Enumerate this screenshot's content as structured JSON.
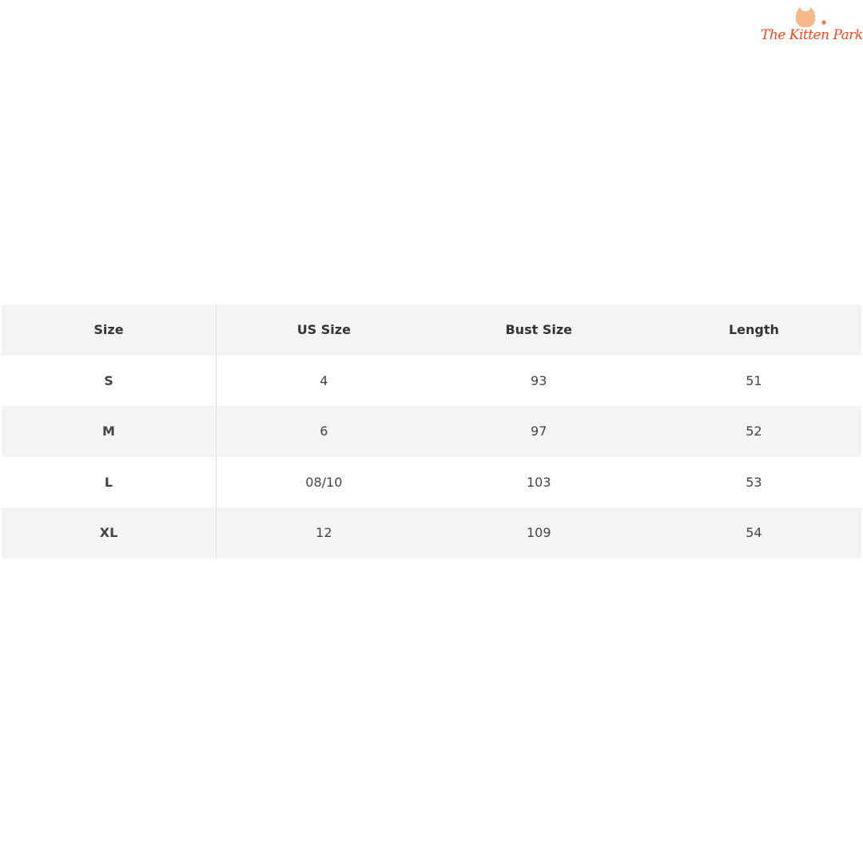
{
  "logo": {
    "text": "The Kitten Park",
    "color": "#f0491e"
  },
  "table": {
    "headers": [
      "Size",
      "US Size",
      "Bust Size",
      "Length"
    ],
    "rows": [
      [
        "S",
        "4",
        "93",
        "51"
      ],
      [
        "M",
        "6",
        "97",
        "52"
      ],
      [
        "L",
        "08/10",
        "103",
        "53"
      ],
      [
        "XL",
        "12",
        "109",
        "54"
      ]
    ]
  }
}
